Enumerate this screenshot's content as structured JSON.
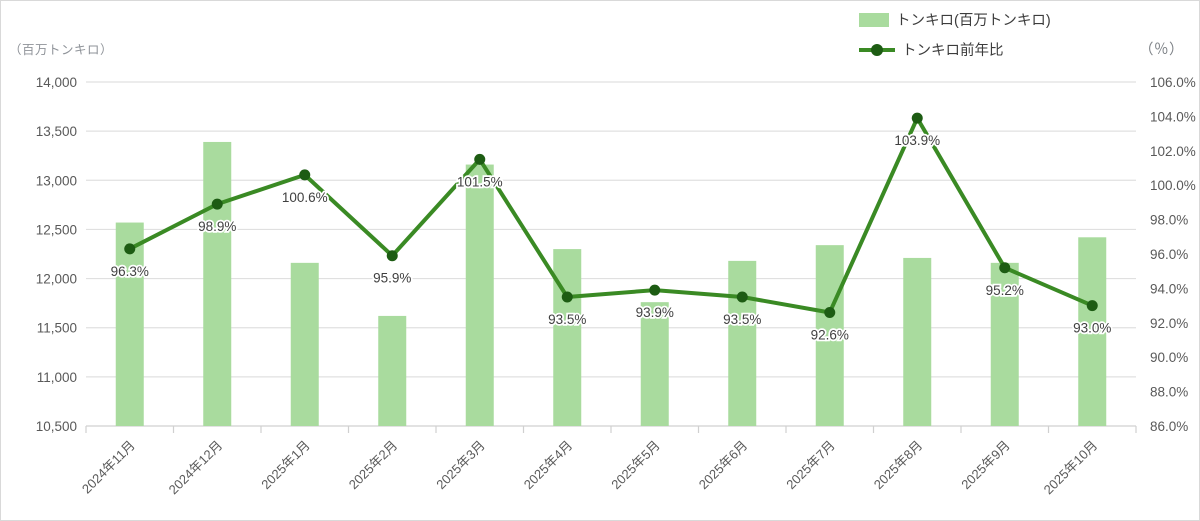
{
  "chart_data": {
    "type": "combo-bar-line",
    "categories": [
      "2024年11月",
      "2024年12月",
      "2025年1月",
      "2025年2月",
      "2025年3月",
      "2025年4月",
      "2025年5月",
      "2025年6月",
      "2025年7月",
      "2025年8月",
      "2025年9月",
      "2025年10月"
    ],
    "series": [
      {
        "name": "トンキロ(百万トンキロ)",
        "type": "bar",
        "axis": "left",
        "values": [
          12570,
          13390,
          12160,
          11620,
          13160,
          12300,
          11760,
          12180,
          12340,
          12210,
          12160,
          12420
        ]
      },
      {
        "name": "トンキロ前年比",
        "type": "line",
        "axis": "right",
        "values": [
          96.3,
          98.9,
          100.6,
          95.9,
          101.5,
          93.5,
          93.9,
          93.5,
          92.6,
          103.9,
          95.2,
          93.0
        ],
        "data_labels": [
          "96.3%",
          "98.9%",
          "100.6%",
          "95.9%",
          "101.5%",
          "93.5%",
          "93.9%",
          "93.5%",
          "92.6%",
          "103.9%",
          "95.2%",
          "93.0%"
        ]
      }
    ],
    "left_axis": {
      "unit_label": "（百万トンキロ）",
      "min": 10500,
      "max": 14000,
      "step": 500,
      "tick_labels": [
        "10,500",
        "11,000",
        "11,500",
        "12,000",
        "12,500",
        "13,000",
        "13,500",
        "14,000"
      ]
    },
    "right_axis": {
      "unit_label": "（％）",
      "min": 86,
      "max": 106,
      "step": 2,
      "tick_labels": [
        "86.0%",
        "88.0%",
        "90.0%",
        "92.0%",
        "94.0%",
        "96.0%",
        "98.0%",
        "100.0%",
        "102.0%",
        "104.0%",
        "106.0%"
      ]
    },
    "grid": true,
    "legend_position": "top-right"
  },
  "legend": {
    "items": [
      {
        "label": "トンキロ(百万トンキロ)",
        "marker": "bar-swatch"
      },
      {
        "label": "トンキロ前年比",
        "marker": "line-swatch"
      }
    ]
  },
  "colors": {
    "bar_fill": "#a9db9e",
    "line": "#3a8a24",
    "line_marker": "#1d5c13",
    "grid": "#e0e0e0",
    "axis_line": "#d0d0d0",
    "axis_text": "#595959",
    "data_label_text": "#404040",
    "unit_text": "#8f9399",
    "border": "#d9d9d9"
  }
}
